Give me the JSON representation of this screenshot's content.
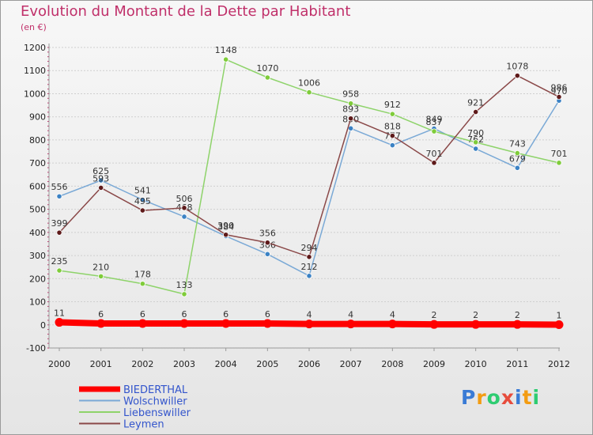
{
  "chart_data": {
    "type": "line",
    "title": "Evolution du Montant de la Dette par Habitant",
    "subtitle": "(en €)",
    "x": [
      "2000",
      "2001",
      "2002",
      "2003",
      "2004",
      "2005",
      "2006",
      "2007",
      "2008",
      "2009",
      "2010",
      "2011",
      "2012"
    ],
    "ylim": [
      -100,
      1200
    ],
    "yticks": [
      -100,
      0,
      100,
      200,
      300,
      400,
      500,
      600,
      700,
      800,
      900,
      1000,
      1100,
      1200
    ],
    "grid": "horizontal",
    "legend_position": "bottom-left",
    "series": [
      {
        "name": "Wolschwiller",
        "color": "#7aa9d6",
        "marker": "#3b82c4",
        "values": [
          556,
          625,
          541,
          468,
          384,
          306,
          212,
          850,
          777,
          849,
          762,
          679,
          970
        ],
        "labels": [
          "556",
          "625",
          "541",
          "468",
          "384",
          "306",
          "212",
          "850",
          "777",
          "849",
          "762",
          "679",
          "970"
        ]
      },
      {
        "name": "Liebenswiller",
        "color": "#8ed36a",
        "marker": "#7fcc3a",
        "values": [
          235,
          210,
          178,
          133,
          1148,
          1070,
          1006,
          958,
          912,
          837,
          790,
          743,
          701
        ],
        "labels": [
          "235",
          "210",
          "178",
          "133",
          "1148",
          "1070",
          "1006",
          "958",
          "912",
          "837",
          "790",
          "743",
          "701"
        ]
      },
      {
        "name": "Leymen",
        "color": "#8a4848",
        "marker": "#5e1a1a",
        "values": [
          399,
          593,
          495,
          506,
          390,
          356,
          294,
          893,
          818,
          701,
          921,
          1078,
          986
        ],
        "labels": [
          "399",
          "593",
          "495",
          "506",
          "390",
          "356",
          "294",
          "893",
          "818",
          "701",
          "921",
          "1078",
          "986"
        ]
      },
      {
        "name": "BIEDERTHAL",
        "color": "#ff0000",
        "marker": "#ff0000",
        "thick": true,
        "values": [
          11,
          6,
          6,
          6,
          6,
          6,
          4,
          4,
          4,
          2,
          2,
          2,
          1
        ],
        "labels": [
          "11",
          "6",
          "6",
          "6",
          "6",
          "6",
          "4",
          "4",
          "4",
          "2",
          "2",
          "2",
          "1"
        ]
      }
    ],
    "legend": [
      {
        "name": "BIEDERTHAL",
        "color": "#ff0000",
        "thick": true
      },
      {
        "name": "Wolschwiller",
        "color": "#7aa9d6"
      },
      {
        "name": "Liebenswiller",
        "color": "#8ed36a"
      },
      {
        "name": "Leymen",
        "color": "#8a4848"
      }
    ]
  },
  "logo": {
    "text": "Proxiti",
    "colors": [
      "#3a7bd5",
      "#f39c12",
      "#2ecc71",
      "#e74c3c",
      "#3a7bd5",
      "#f39c12",
      "#2ecc71"
    ]
  }
}
